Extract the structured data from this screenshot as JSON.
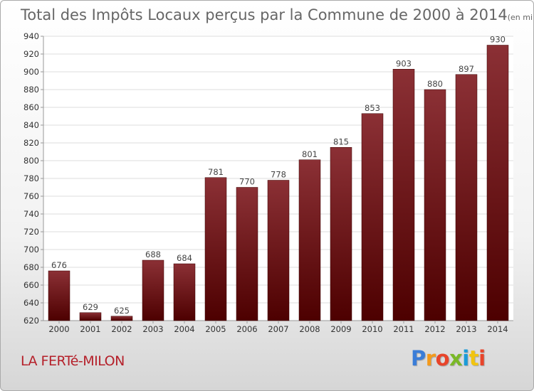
{
  "chart_data": {
    "type": "bar",
    "title": "Total des Impôts Locaux perçus par la Commune de 2000 à 2014",
    "unit": "(en milliers d'€)",
    "categories": [
      "2000",
      "2001",
      "2002",
      "2003",
      "2004",
      "2005",
      "2006",
      "2007",
      "2008",
      "2009",
      "2010",
      "2011",
      "2012",
      "2013",
      "2014"
    ],
    "values": [
      676,
      629,
      625,
      688,
      684,
      781,
      770,
      778,
      801,
      815,
      853,
      903,
      880,
      897,
      930
    ],
    "ylim": [
      620,
      940
    ],
    "yticks": [
      620,
      640,
      660,
      680,
      700,
      720,
      740,
      760,
      780,
      800,
      820,
      840,
      860,
      880,
      900,
      920,
      940
    ],
    "grid": true,
    "bar_color_top": "#8b3035",
    "bar_color_bottom": "#4d0000"
  },
  "commune": "LA FERTé-MILON",
  "logo": {
    "letters": [
      "P",
      "r",
      "o",
      "x",
      "i",
      "t",
      "i"
    ],
    "colors": [
      "#3a7dd8",
      "#f39a1c",
      "#e8442a",
      "#7ab827",
      "#1a9bd8",
      "#f1c40f",
      "#e8442a"
    ]
  }
}
